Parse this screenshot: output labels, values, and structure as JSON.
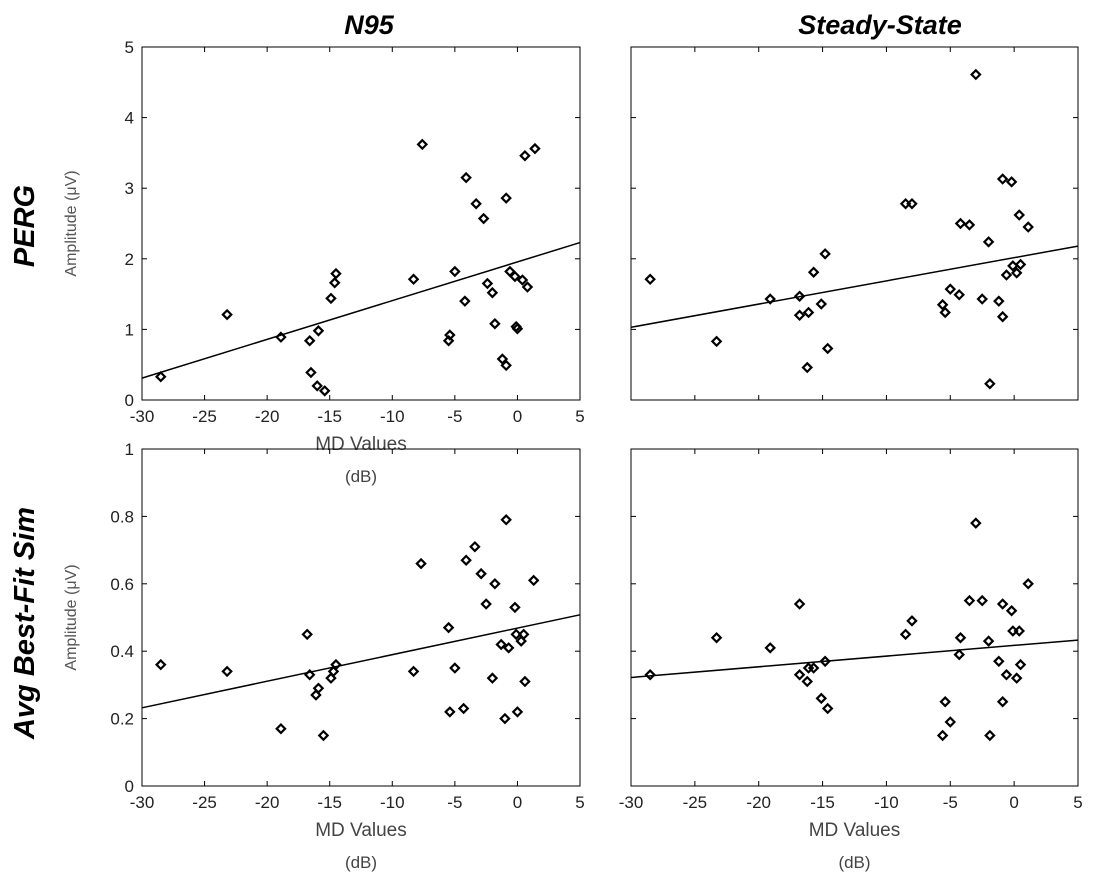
{
  "column_titles": [
    "N95",
    "Steady-State"
  ],
  "row_titles": [
    "PERG",
    "Avg Best-Fit Sim"
  ],
  "chart_data": [
    {
      "type": "scatter",
      "column": "N95",
      "row": "PERG",
      "xlabel": "MD Values",
      "xunit": "(dB)",
      "ylabel": "Amplitude (μV)",
      "xlim": [
        -30,
        5
      ],
      "ylim": [
        0,
        5
      ],
      "xticks": [
        -30,
        -25,
        -20,
        -15,
        -10,
        -5,
        0,
        5
      ],
      "yticks": [
        0,
        1,
        2,
        3,
        4,
        5
      ],
      "grid": false,
      "fit_line": [
        [
          -30,
          0.31
        ],
        [
          5,
          2.23
        ]
      ],
      "points": [
        [
          -28.5,
          0.33
        ],
        [
          -23.2,
          1.21
        ],
        [
          -18.9,
          0.89
        ],
        [
          -16.6,
          0.84
        ],
        [
          -16.5,
          0.39
        ],
        [
          -16.0,
          0.2
        ],
        [
          -15.9,
          0.98
        ],
        [
          -15.4,
          0.13
        ],
        [
          -14.9,
          1.44
        ],
        [
          -14.6,
          1.66
        ],
        [
          -14.5,
          1.79
        ],
        [
          -8.3,
          1.71
        ],
        [
          -7.6,
          3.62
        ],
        [
          -5.5,
          0.84
        ],
        [
          -5.4,
          0.92
        ],
        [
          -5.0,
          1.82
        ],
        [
          -4.2,
          1.4
        ],
        [
          -4.1,
          3.15
        ],
        [
          -3.3,
          2.78
        ],
        [
          -2.7,
          2.57
        ],
        [
          -2.4,
          1.65
        ],
        [
          -2.0,
          1.52
        ],
        [
          -1.8,
          1.08
        ],
        [
          -1.2,
          0.58
        ],
        [
          -0.9,
          0.49
        ],
        [
          -0.9,
          2.86
        ],
        [
          -0.6,
          1.82
        ],
        [
          -0.2,
          1.75
        ],
        [
          -0.1,
          1.04
        ],
        [
          0.0,
          1.01
        ],
        [
          0.4,
          1.7
        ],
        [
          0.6,
          3.46
        ],
        [
          0.8,
          1.6
        ],
        [
          1.4,
          3.56
        ]
      ]
    },
    {
      "type": "scatter",
      "column": "Steady-State",
      "row": "PERG",
      "xlabel": "",
      "ylabel": "",
      "xlim": [
        -30,
        5
      ],
      "ylim": [
        0,
        5
      ],
      "grid": false,
      "fit_line": [
        [
          -30,
          1.03
        ],
        [
          5,
          2.18
        ]
      ],
      "points": [
        [
          -28.5,
          1.71
        ],
        [
          -23.3,
          0.83
        ],
        [
          -19.1,
          1.43
        ],
        [
          -16.8,
          1.47
        ],
        [
          -16.8,
          1.2
        ],
        [
          -16.2,
          0.46
        ],
        [
          -16.1,
          1.24
        ],
        [
          -15.7,
          1.81
        ],
        [
          -15.1,
          1.36
        ],
        [
          -14.8,
          2.07
        ],
        [
          -14.6,
          0.73
        ],
        [
          -8.5,
          2.78
        ],
        [
          -8.0,
          2.78
        ],
        [
          -5.6,
          1.35
        ],
        [
          -5.4,
          1.24
        ],
        [
          -5.0,
          1.57
        ],
        [
          -4.3,
          1.49
        ],
        [
          -4.2,
          2.5
        ],
        [
          -3.5,
          2.48
        ],
        [
          -3.0,
          4.61
        ],
        [
          -2.5,
          1.43
        ],
        [
          -2.0,
          2.24
        ],
        [
          -1.9,
          0.23
        ],
        [
          -1.2,
          1.4
        ],
        [
          -0.9,
          1.18
        ],
        [
          -0.9,
          3.13
        ],
        [
          -0.6,
          1.77
        ],
        [
          -0.2,
          3.09
        ],
        [
          -0.1,
          1.9
        ],
        [
          0.2,
          1.8
        ],
        [
          0.4,
          2.62
        ],
        [
          0.5,
          1.92
        ],
        [
          1.1,
          2.45
        ]
      ]
    },
    {
      "type": "scatter",
      "column": "N95",
      "row": "Avg Best-Fit Sim",
      "xlabel": "MD Values",
      "xunit": "(dB)",
      "ylabel": "Amplitude (μV)",
      "xlim": [
        -30,
        5
      ],
      "ylim": [
        0,
        1
      ],
      "xticks": [
        -30,
        -25,
        -20,
        -15,
        -10,
        -5,
        0,
        5
      ],
      "yticks": [
        0,
        0.2,
        0.4,
        0.6,
        0.8,
        1
      ],
      "grid": false,
      "fit_line": [
        [
          -30,
          0.232
        ],
        [
          5,
          0.508
        ]
      ],
      "points": [
        [
          -28.5,
          0.36
        ],
        [
          -23.2,
          0.34
        ],
        [
          -18.9,
          0.17
        ],
        [
          -16.8,
          0.45
        ],
        [
          -16.6,
          0.33
        ],
        [
          -16.1,
          0.27
        ],
        [
          -15.9,
          0.29
        ],
        [
          -15.5,
          0.15
        ],
        [
          -14.9,
          0.32
        ],
        [
          -14.7,
          0.34
        ],
        [
          -14.5,
          0.36
        ],
        [
          -8.3,
          0.34
        ],
        [
          -7.7,
          0.66
        ],
        [
          -5.5,
          0.47
        ],
        [
          -5.4,
          0.22
        ],
        [
          -5.0,
          0.35
        ],
        [
          -4.3,
          0.23
        ],
        [
          -4.1,
          0.67
        ],
        [
          -3.4,
          0.71
        ],
        [
          -2.9,
          0.63
        ],
        [
          -2.5,
          0.54
        ],
        [
          -2.0,
          0.32
        ],
        [
          -1.8,
          0.6
        ],
        [
          -1.3,
          0.42
        ],
        [
          -1.0,
          0.2
        ],
        [
          -0.9,
          0.79
        ],
        [
          -0.7,
          0.41
        ],
        [
          -0.2,
          0.53
        ],
        [
          -0.1,
          0.45
        ],
        [
          0.0,
          0.22
        ],
        [
          0.3,
          0.43
        ],
        [
          0.5,
          0.45
        ],
        [
          0.6,
          0.31
        ],
        [
          1.3,
          0.61
        ]
      ]
    },
    {
      "type": "scatter",
      "column": "Steady-State",
      "row": "Avg Best-Fit Sim",
      "xlabel": "MD Values",
      "xunit": "(dB)",
      "ylabel": "",
      "xlim": [
        -30,
        5
      ],
      "ylim": [
        0,
        1
      ],
      "xticks": [
        -30,
        -25,
        -20,
        -15,
        -10,
        -5,
        0,
        5
      ],
      "grid": false,
      "fit_line": [
        [
          -30,
          0.322
        ],
        [
          5,
          0.433
        ]
      ],
      "points": [
        [
          -28.5,
          0.33
        ],
        [
          -23.3,
          0.44
        ],
        [
          -19.1,
          0.41
        ],
        [
          -16.8,
          0.54
        ],
        [
          -16.8,
          0.33
        ],
        [
          -16.2,
          0.31
        ],
        [
          -16.1,
          0.35
        ],
        [
          -15.7,
          0.35
        ],
        [
          -15.1,
          0.26
        ],
        [
          -14.8,
          0.37
        ],
        [
          -14.6,
          0.23
        ],
        [
          -8.5,
          0.45
        ],
        [
          -8.0,
          0.49
        ],
        [
          -5.6,
          0.15
        ],
        [
          -5.4,
          0.25
        ],
        [
          -5.0,
          0.19
        ],
        [
          -4.3,
          0.39
        ],
        [
          -4.2,
          0.44
        ],
        [
          -3.5,
          0.55
        ],
        [
          -3.0,
          0.78
        ],
        [
          -2.5,
          0.55
        ],
        [
          -2.0,
          0.43
        ],
        [
          -1.9,
          0.15
        ],
        [
          -1.2,
          0.37
        ],
        [
          -0.9,
          0.25
        ],
        [
          -0.9,
          0.54
        ],
        [
          -0.6,
          0.33
        ],
        [
          -0.2,
          0.52
        ],
        [
          -0.1,
          0.46
        ],
        [
          0.2,
          0.32
        ],
        [
          0.4,
          0.46
        ],
        [
          0.5,
          0.36
        ],
        [
          1.1,
          0.6
        ]
      ]
    }
  ]
}
